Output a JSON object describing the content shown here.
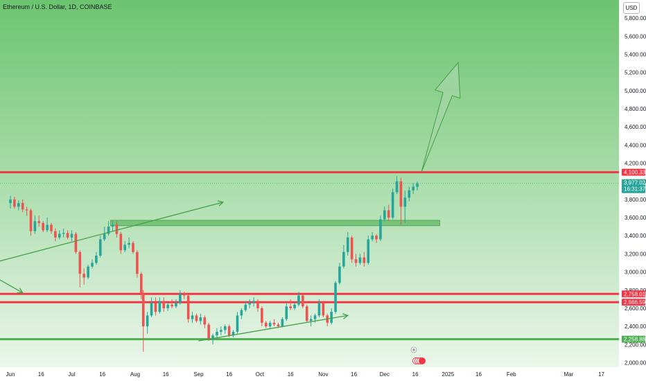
{
  "header": {
    "title": "Ethereum / U.S. Dollar, 1D, COINBASE",
    "currency_button": "USD"
  },
  "colors": {
    "up": "#26a69a",
    "down": "#ef5350",
    "resistance": "#f23645",
    "support": "#4caf50",
    "zone": "#66bb6a",
    "projection_fill": "#a5d6a7",
    "background_top": "#6cc46f",
    "background_bottom": "#eaf6ea"
  },
  "chart_data": {
    "type": "candlestick",
    "y_axis": {
      "min": 1950,
      "max": 6000,
      "ticks": [
        "2,000.00",
        "2,200.00",
        "2,400.00",
        "2,600.00",
        "2,800.00",
        "3,000.00",
        "3,200.00",
        "3,400.00",
        "3,600.00",
        "3,800.00",
        "4,000.00",
        "4,200.00",
        "4,400.00",
        "4,600.00",
        "4,800.00",
        "5,000.00",
        "5,200.00",
        "5,400.00",
        "5,600.00",
        "5,800.00"
      ]
    },
    "x_axis": {
      "labels": [
        {
          "text": "Jun",
          "date": "2024-06-01"
        },
        {
          "text": "16",
          "date": "2024-06-16"
        },
        {
          "text": "Jul",
          "date": "2024-07-01"
        },
        {
          "text": "16",
          "date": "2024-07-16"
        },
        {
          "text": "Aug",
          "date": "2024-08-01"
        },
        {
          "text": "16",
          "date": "2024-08-16"
        },
        {
          "text": "Sep",
          "date": "2024-09-01"
        },
        {
          "text": "16",
          "date": "2024-09-16"
        },
        {
          "text": "Oct",
          "date": "2024-10-01"
        },
        {
          "text": "16",
          "date": "2024-10-16"
        },
        {
          "text": "Nov",
          "date": "2024-11-01"
        },
        {
          "text": "16",
          "date": "2024-11-16"
        },
        {
          "text": "Dec",
          "date": "2024-12-01"
        },
        {
          "text": "16",
          "date": "2024-12-16"
        },
        {
          "text": "2025",
          "date": "2025-01-01"
        },
        {
          "text": "16",
          "date": "2025-01-16"
        },
        {
          "text": "Feb",
          "date": "2025-02-01"
        },
        {
          "text": "Mar",
          "date": "2025-03-01"
        },
        {
          "text": "17",
          "date": "2025-03-17"
        }
      ]
    },
    "price_tags": [
      {
        "text": "4,100.33",
        "value": 4100.33,
        "color": "#f23645"
      },
      {
        "text": "3,977.02",
        "value": 3977.02,
        "color": "#26a69a",
        "sub": "16:31:37"
      },
      {
        "text": "2,758.01",
        "value": 2758.01,
        "color": "#f23645"
      },
      {
        "text": "2,666.59",
        "value": 2666.59,
        "color": "#f23645"
      },
      {
        "text": "2,258.88",
        "value": 2258.88,
        "color": "#4caf50"
      }
    ],
    "horizontal_lines": [
      {
        "value": 4100.33,
        "color": "#f23645"
      },
      {
        "value": 2758.01,
        "color": "#f23645"
      },
      {
        "value": 2666.59,
        "color": "#f23645"
      },
      {
        "value": 2258.88,
        "color": "#4caf50"
      }
    ],
    "zone": {
      "from": "2024-07-20",
      "to": "2024-12-28",
      "low": 3510,
      "high": 3570
    },
    "trend_arrows": [
      {
        "from": {
          "date": "2024-05-10",
          "price": 3020
        },
        "to": {
          "date": "2024-09-13",
          "price": 3770
        }
      },
      {
        "from": {
          "date": "2024-05-20",
          "price": 3000
        },
        "to": {
          "date": "2024-06-07",
          "price": 2770
        }
      },
      {
        "from": {
          "date": "2024-09-01",
          "price": 2240
        },
        "to": {
          "date": "2024-11-13",
          "price": 2520
        }
      }
    ],
    "projection_arrow": {
      "from": {
        "date": "2024-12-19",
        "price": 4100
      },
      "to": {
        "date": "2025-01-06",
        "price": 5310
      }
    },
    "ohlc": [
      {
        "d": "2024-06-01",
        "o": 3760,
        "h": 3840,
        "l": 3700,
        "c": 3800
      },
      {
        "d": "2024-06-03",
        "o": 3800,
        "h": 3830,
        "l": 3700,
        "c": 3720
      },
      {
        "d": "2024-06-05",
        "o": 3720,
        "h": 3790,
        "l": 3680,
        "c": 3760
      },
      {
        "d": "2024-06-07",
        "o": 3760,
        "h": 3800,
        "l": 3660,
        "c": 3690
      },
      {
        "d": "2024-06-09",
        "o": 3690,
        "h": 3720,
        "l": 3620,
        "c": 3680
      },
      {
        "d": "2024-06-11",
        "o": 3680,
        "h": 3700,
        "l": 3400,
        "c": 3450
      },
      {
        "d": "2024-06-13",
        "o": 3450,
        "h": 3620,
        "l": 3420,
        "c": 3560
      },
      {
        "d": "2024-06-15",
        "o": 3560,
        "h": 3620,
        "l": 3500,
        "c": 3540
      },
      {
        "d": "2024-06-17",
        "o": 3540,
        "h": 3560,
        "l": 3440,
        "c": 3460
      },
      {
        "d": "2024-06-19",
        "o": 3460,
        "h": 3600,
        "l": 3440,
        "c": 3520
      },
      {
        "d": "2024-06-21",
        "o": 3520,
        "h": 3540,
        "l": 3420,
        "c": 3450
      },
      {
        "d": "2024-06-23",
        "o": 3450,
        "h": 3480,
        "l": 3340,
        "c": 3380
      },
      {
        "d": "2024-06-25",
        "o": 3380,
        "h": 3460,
        "l": 3360,
        "c": 3420
      },
      {
        "d": "2024-06-27",
        "o": 3420,
        "h": 3480,
        "l": 3380,
        "c": 3430
      },
      {
        "d": "2024-06-29",
        "o": 3430,
        "h": 3460,
        "l": 3360,
        "c": 3380
      },
      {
        "d": "2024-07-01",
        "o": 3380,
        "h": 3460,
        "l": 3340,
        "c": 3420
      },
      {
        "d": "2024-07-03",
        "o": 3420,
        "h": 3440,
        "l": 3200,
        "c": 3220
      },
      {
        "d": "2024-07-05",
        "o": 3220,
        "h": 3240,
        "l": 2830,
        "c": 2980
      },
      {
        "d": "2024-07-07",
        "o": 2980,
        "h": 3040,
        "l": 2860,
        "c": 2940
      },
      {
        "d": "2024-07-09",
        "o": 2940,
        "h": 3080,
        "l": 2920,
        "c": 3060
      },
      {
        "d": "2024-07-11",
        "o": 3060,
        "h": 3140,
        "l": 3040,
        "c": 3100
      },
      {
        "d": "2024-07-13",
        "o": 3100,
        "h": 3220,
        "l": 3080,
        "c": 3180
      },
      {
        "d": "2024-07-15",
        "o": 3180,
        "h": 3400,
        "l": 3160,
        "c": 3360
      },
      {
        "d": "2024-07-17",
        "o": 3360,
        "h": 3500,
        "l": 3340,
        "c": 3420
      },
      {
        "d": "2024-07-19",
        "o": 3420,
        "h": 3560,
        "l": 3400,
        "c": 3500
      },
      {
        "d": "2024-07-21",
        "o": 3500,
        "h": 3560,
        "l": 3450,
        "c": 3520
      },
      {
        "d": "2024-07-23",
        "o": 3520,
        "h": 3560,
        "l": 3380,
        "c": 3420
      },
      {
        "d": "2024-07-25",
        "o": 3420,
        "h": 3440,
        "l": 3200,
        "c": 3240
      },
      {
        "d": "2024-07-27",
        "o": 3240,
        "h": 3340,
        "l": 3220,
        "c": 3300
      },
      {
        "d": "2024-07-29",
        "o": 3300,
        "h": 3380,
        "l": 3260,
        "c": 3320
      },
      {
        "d": "2024-07-31",
        "o": 3320,
        "h": 3340,
        "l": 3200,
        "c": 3220
      },
      {
        "d": "2024-08-02",
        "o": 3220,
        "h": 3240,
        "l": 2940,
        "c": 2980
      },
      {
        "d": "2024-08-04",
        "o": 2980,
        "h": 3000,
        "l": 2700,
        "c": 2760
      },
      {
        "d": "2024-08-05",
        "o": 2760,
        "h": 2800,
        "l": 2120,
        "c": 2400
      },
      {
        "d": "2024-08-07",
        "o": 2400,
        "h": 2560,
        "l": 2320,
        "c": 2520
      },
      {
        "d": "2024-08-09",
        "o": 2520,
        "h": 2720,
        "l": 2500,
        "c": 2660
      },
      {
        "d": "2024-08-11",
        "o": 2660,
        "h": 2720,
        "l": 2520,
        "c": 2560
      },
      {
        "d": "2024-08-13",
        "o": 2560,
        "h": 2720,
        "l": 2540,
        "c": 2680
      },
      {
        "d": "2024-08-15",
        "o": 2680,
        "h": 2720,
        "l": 2560,
        "c": 2600
      },
      {
        "d": "2024-08-17",
        "o": 2600,
        "h": 2660,
        "l": 2570,
        "c": 2640
      },
      {
        "d": "2024-08-19",
        "o": 2640,
        "h": 2700,
        "l": 2600,
        "c": 2620
      },
      {
        "d": "2024-08-21",
        "o": 2620,
        "h": 2700,
        "l": 2600,
        "c": 2660
      },
      {
        "d": "2024-08-23",
        "o": 2660,
        "h": 2800,
        "l": 2640,
        "c": 2760
      },
      {
        "d": "2024-08-25",
        "o": 2760,
        "h": 2780,
        "l": 2700,
        "c": 2740
      },
      {
        "d": "2024-08-27",
        "o": 2740,
        "h": 2760,
        "l": 2440,
        "c": 2480
      },
      {
        "d": "2024-08-29",
        "o": 2480,
        "h": 2560,
        "l": 2440,
        "c": 2520
      },
      {
        "d": "2024-08-31",
        "o": 2520,
        "h": 2540,
        "l": 2440,
        "c": 2460
      },
      {
        "d": "2024-09-02",
        "o": 2460,
        "h": 2540,
        "l": 2420,
        "c": 2500
      },
      {
        "d": "2024-09-04",
        "o": 2500,
        "h": 2520,
        "l": 2380,
        "c": 2420
      },
      {
        "d": "2024-09-06",
        "o": 2420,
        "h": 2440,
        "l": 2240,
        "c": 2260
      },
      {
        "d": "2024-09-08",
        "o": 2260,
        "h": 2320,
        "l": 2200,
        "c": 2300
      },
      {
        "d": "2024-09-10",
        "o": 2300,
        "h": 2380,
        "l": 2280,
        "c": 2340
      },
      {
        "d": "2024-09-12",
        "o": 2340,
        "h": 2400,
        "l": 2300,
        "c": 2360
      },
      {
        "d": "2024-09-14",
        "o": 2360,
        "h": 2420,
        "l": 2320,
        "c": 2400
      },
      {
        "d": "2024-09-16",
        "o": 2400,
        "h": 2420,
        "l": 2280,
        "c": 2300
      },
      {
        "d": "2024-09-18",
        "o": 2300,
        "h": 2360,
        "l": 2280,
        "c": 2340
      },
      {
        "d": "2024-09-20",
        "o": 2340,
        "h": 2560,
        "l": 2320,
        "c": 2520
      },
      {
        "d": "2024-09-22",
        "o": 2520,
        "h": 2600,
        "l": 2480,
        "c": 2580
      },
      {
        "d": "2024-09-24",
        "o": 2580,
        "h": 2680,
        "l": 2560,
        "c": 2640
      },
      {
        "d": "2024-09-26",
        "o": 2640,
        "h": 2700,
        "l": 2600,
        "c": 2660
      },
      {
        "d": "2024-09-28",
        "o": 2660,
        "h": 2720,
        "l": 2620,
        "c": 2680
      },
      {
        "d": "2024-09-30",
        "o": 2680,
        "h": 2700,
        "l": 2560,
        "c": 2600
      },
      {
        "d": "2024-10-02",
        "o": 2600,
        "h": 2620,
        "l": 2400,
        "c": 2440
      },
      {
        "d": "2024-10-04",
        "o": 2440,
        "h": 2460,
        "l": 2380,
        "c": 2400
      },
      {
        "d": "2024-10-06",
        "o": 2400,
        "h": 2460,
        "l": 2380,
        "c": 2440
      },
      {
        "d": "2024-10-08",
        "o": 2440,
        "h": 2480,
        "l": 2400,
        "c": 2420
      },
      {
        "d": "2024-10-10",
        "o": 2420,
        "h": 2440,
        "l": 2380,
        "c": 2400
      },
      {
        "d": "2024-10-12",
        "o": 2400,
        "h": 2500,
        "l": 2390,
        "c": 2480
      },
      {
        "d": "2024-10-14",
        "o": 2480,
        "h": 2660,
        "l": 2460,
        "c": 2620
      },
      {
        "d": "2024-10-16",
        "o": 2620,
        "h": 2700,
        "l": 2580,
        "c": 2600
      },
      {
        "d": "2024-10-18",
        "o": 2600,
        "h": 2660,
        "l": 2580,
        "c": 2640
      },
      {
        "d": "2024-10-20",
        "o": 2640,
        "h": 2780,
        "l": 2620,
        "c": 2740
      },
      {
        "d": "2024-10-22",
        "o": 2740,
        "h": 2760,
        "l": 2600,
        "c": 2620
      },
      {
        "d": "2024-10-24",
        "o": 2620,
        "h": 2640,
        "l": 2440,
        "c": 2460
      },
      {
        "d": "2024-10-26",
        "o": 2460,
        "h": 2520,
        "l": 2400,
        "c": 2480
      },
      {
        "d": "2024-10-28",
        "o": 2480,
        "h": 2540,
        "l": 2440,
        "c": 2520
      },
      {
        "d": "2024-10-30",
        "o": 2520,
        "h": 2700,
        "l": 2500,
        "c": 2660
      },
      {
        "d": "2024-11-01",
        "o": 2660,
        "h": 2680,
        "l": 2500,
        "c": 2520
      },
      {
        "d": "2024-11-03",
        "o": 2520,
        "h": 2540,
        "l": 2400,
        "c": 2440
      },
      {
        "d": "2024-11-05",
        "o": 2440,
        "h": 2600,
        "l": 2420,
        "c": 2560
      },
      {
        "d": "2024-11-07",
        "o": 2560,
        "h": 2900,
        "l": 2540,
        "c": 2880
      },
      {
        "d": "2024-11-09",
        "o": 2880,
        "h": 3100,
        "l": 2860,
        "c": 3060
      },
      {
        "d": "2024-11-11",
        "o": 3060,
        "h": 3300,
        "l": 3040,
        "c": 3220
      },
      {
        "d": "2024-11-13",
        "o": 3220,
        "h": 3440,
        "l": 3180,
        "c": 3380
      },
      {
        "d": "2024-11-15",
        "o": 3380,
        "h": 3400,
        "l": 3100,
        "c": 3140
      },
      {
        "d": "2024-11-17",
        "o": 3140,
        "h": 3200,
        "l": 3060,
        "c": 3100
      },
      {
        "d": "2024-11-19",
        "o": 3100,
        "h": 3200,
        "l": 3080,
        "c": 3160
      },
      {
        "d": "2024-11-21",
        "o": 3160,
        "h": 3220,
        "l": 3060,
        "c": 3100
      },
      {
        "d": "2024-11-23",
        "o": 3100,
        "h": 3400,
        "l": 3080,
        "c": 3360
      },
      {
        "d": "2024-11-25",
        "o": 3360,
        "h": 3440,
        "l": 3340,
        "c": 3400
      },
      {
        "d": "2024-11-27",
        "o": 3400,
        "h": 3420,
        "l": 3320,
        "c": 3360
      },
      {
        "d": "2024-11-29",
        "o": 3360,
        "h": 3620,
        "l": 3340,
        "c": 3580
      },
      {
        "d": "2024-12-01",
        "o": 3580,
        "h": 3720,
        "l": 3560,
        "c": 3680
      },
      {
        "d": "2024-12-03",
        "o": 3680,
        "h": 3740,
        "l": 3560,
        "c": 3600
      },
      {
        "d": "2024-12-05",
        "o": 3600,
        "h": 3920,
        "l": 3580,
        "c": 3880
      },
      {
        "d": "2024-12-07",
        "o": 3880,
        "h": 4060,
        "l": 3860,
        "c": 4000
      },
      {
        "d": "2024-12-09",
        "o": 4000,
        "h": 4040,
        "l": 3520,
        "c": 3720
      },
      {
        "d": "2024-12-11",
        "o": 3720,
        "h": 3900,
        "l": 3540,
        "c": 3820
      },
      {
        "d": "2024-12-13",
        "o": 3820,
        "h": 3940,
        "l": 3780,
        "c": 3900
      },
      {
        "d": "2024-12-15",
        "o": 3900,
        "h": 3980,
        "l": 3860,
        "c": 3940
      },
      {
        "d": "2024-12-17",
        "o": 3940,
        "h": 4000,
        "l": 3900,
        "c": 3977
      }
    ]
  }
}
